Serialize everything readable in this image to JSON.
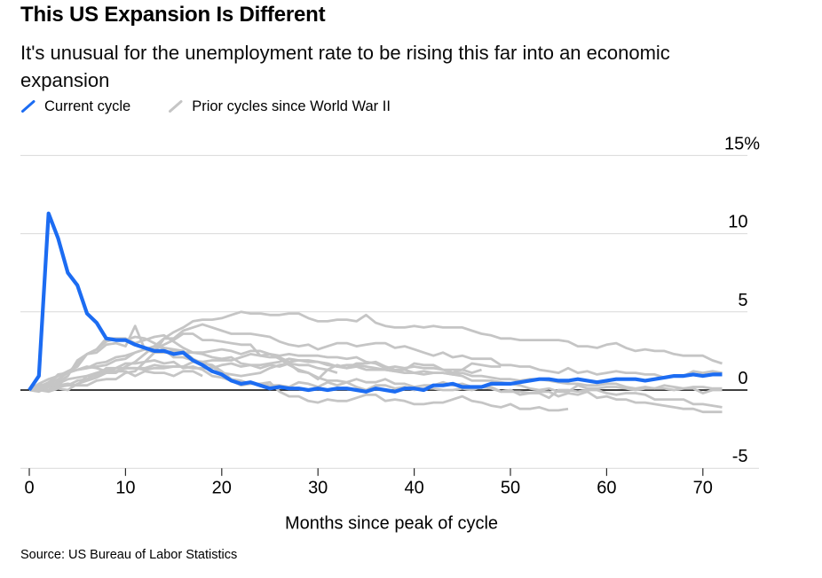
{
  "header": {
    "title": "This US Expansion Is Different",
    "subtitle": "It's unusual for the unemployment rate to be rising this far into an economic expansion"
  },
  "legend": [
    {
      "label": "Current cycle",
      "color": "#1c6cf2"
    },
    {
      "label": "Prior cycles since World War II",
      "color": "#c5c5c5"
    }
  ],
  "source": "Source: US Bureau of Labor Statistics",
  "colors": {
    "current_line": "#1c6cf2",
    "prior_line": "#c5c5c5",
    "gridline": "#d9d9d9",
    "zero_line": "#000000",
    "tick": "#2b2b2b",
    "text": "#000000",
    "background": "#ffffff"
  },
  "chart_data": {
    "type": "line",
    "xlabel": "Months since peak of cycle",
    "ylabel": "",
    "x_ticks": [
      0,
      10,
      20,
      30,
      40,
      50,
      60,
      70
    ],
    "y_ticks": [
      {
        "value": 15,
        "label": "15%"
      },
      {
        "value": 10,
        "label": "10"
      },
      {
        "value": 5,
        "label": "5"
      },
      {
        "value": 0,
        "label": "0"
      },
      {
        "value": -5,
        "label": "-5"
      }
    ],
    "xlim": [
      0,
      75
    ],
    "ylim": [
      -5,
      15
    ],
    "grid": "horizontal",
    "legend_position": "top-left",
    "x_unit": "months",
    "y_unit": "percentage points change in unemployment rate",
    "series": [
      {
        "name": "current-cycle",
        "role": "current",
        "color": "#1c6cf2",
        "width": 4.2,
        "values": [
          0,
          0.9,
          11.3,
          9.7,
          7.5,
          6.7,
          4.9,
          4.3,
          3.3,
          3.2,
          3.2,
          2.9,
          2.7,
          2.5,
          2.5,
          2.3,
          2.4,
          1.9,
          1.6,
          1.2,
          1.0,
          0.6,
          0.4,
          0.5,
          0.3,
          0.1,
          0.2,
          0.1,
          0.1,
          0,
          0.1,
          0,
          0.1,
          0.1,
          0,
          -0.1,
          0.1,
          0,
          -0.1,
          0.1,
          0.1,
          0,
          0.3,
          0.3,
          0.4,
          0.2,
          0.2,
          0.2,
          0.4,
          0.4,
          0.4,
          0.5,
          0.6,
          0.7,
          0.7,
          0.6,
          0.6,
          0.7,
          0.6,
          0.5,
          0.6,
          0.7,
          0.7,
          0.7,
          0.6,
          0.7,
          0.8,
          0.9,
          0.9,
          1.0,
          0.9,
          1.0,
          1.0
        ]
      },
      {
        "name": "prior-cycle-01",
        "role": "prior",
        "color": "#c5c5c5",
        "width": 2.8,
        "values": [
          0,
          0.2,
          0.5,
          0.9,
          1.2,
          1.5,
          2.3,
          2.4,
          2.9,
          3.0,
          2.8,
          4.1,
          2.6,
          2.8,
          2.7,
          2.6,
          2.5,
          2.0,
          1.7,
          1.6,
          1.2,
          0.7,
          0.6,
          0.4,
          0.4,
          0.5,
          -0.1,
          -0.4,
          -0.4,
          -0.7,
          -0.8,
          -0.6,
          -0.7,
          -0.7,
          -0.5,
          -0.3,
          -0.3,
          -0.7,
          -0.6,
          -0.7,
          -0.9,
          -0.9,
          -0.8,
          -0.8,
          -0.6,
          -0.4,
          -0.7,
          -0.8,
          -1.0,
          -1.1,
          -0.9,
          -1.2,
          -1.2,
          -1.1,
          -1.3,
          -1.3,
          -1.2
        ]
      },
      {
        "name": "prior-cycle-02",
        "role": "prior",
        "color": "#c5c5c5",
        "width": 2.8,
        "values": [
          0,
          0.1,
          0.3,
          0.5,
          0.9,
          1.9,
          2.3,
          2.6,
          3.1,
          3.3,
          3.3,
          3.0,
          3.2,
          3.4,
          3.5,
          3.1,
          2.7,
          2.4,
          2.3,
          2.1,
          2.0,
          2.1,
          1.7,
          1.6,
          1.4,
          1.6,
          1.5,
          1.7,
          1.6,
          1.6,
          1.4,
          1.3,
          1.6,
          1.4,
          1.7,
          1.7,
          1.8,
          1.5,
          1.3,
          1.3,
          1.7,
          1.6,
          1.6,
          1.3,
          1.1,
          1.3,
          1.7,
          1.6,
          1.5,
          1.5
        ]
      },
      {
        "name": "prior-cycle-03",
        "role": "prior",
        "color": "#c5c5c5",
        "width": 2.8,
        "values": [
          0,
          0.3,
          0.4,
          1.0,
          1.1,
          1.7,
          2.3,
          2.6,
          3.3,
          3.3,
          3.2,
          3.4,
          3.3,
          3.0,
          2.6,
          2.1,
          2.1,
          1.9,
          1.8,
          1.5,
          1.1,
          1.0,
          0.9,
          1.0,
          1.1,
          1.4,
          1.6,
          1.7,
          1.2,
          1.1,
          0.7,
          1.3,
          1.1
        ]
      },
      {
        "name": "prior-cycle-04",
        "role": "prior",
        "color": "#c5c5c5",
        "width": 2.8,
        "values": [
          0,
          -0.1,
          0.2,
          0.3,
          0.4,
          0.3,
          0.9,
          0.9,
          1.4,
          1.4,
          1.7,
          1.7,
          1.8,
          1.9,
          1.7,
          1.8,
          1.4,
          1.5,
          1.3,
          0.9,
          0.8,
          0.6,
          0.3,
          0.4,
          0.4,
          0.3,
          0.3,
          0.2,
          0.5,
          0.4,
          0.2,
          0.5,
          0.3,
          0.5,
          0.7,
          0.5,
          0.5,
          0.7,
          0.4,
          0.4,
          0.2,
          0.3,
          0.3,
          0.5,
          0.3,
          0.4,
          0.2,
          0.2,
          0.1,
          -0.1,
          0,
          -0.3,
          -0.2,
          -0.1,
          -0.1,
          -0.4,
          -0.2,
          -0.3,
          -0.1,
          -0.5,
          -0.4,
          -0.6,
          -0.6,
          -0.8,
          -0.8,
          -0.9,
          -1.0,
          -1.1,
          -1.2,
          -1.2,
          -1.4,
          -1.4,
          -1.4
        ]
      },
      {
        "name": "prior-cycle-05",
        "role": "prior",
        "color": "#c5c5c5",
        "width": 2.8,
        "values": [
          0,
          0.4,
          0.7,
          0.9,
          1.1,
          1.3,
          1.4,
          1.5,
          1.6,
          1.9,
          2.0,
          2.4,
          2.6,
          2.4,
          2.4,
          2.5,
          2.4,
          2.4,
          2.4,
          2.5,
          2.6,
          2.5,
          2.3,
          2.5,
          2.5,
          2.3,
          2.2,
          2.3,
          2.2,
          2.2,
          2.2,
          2.1,
          2.1,
          2.0,
          2.1,
          1.8,
          1.7,
          1.4,
          1.5,
          1.4,
          1.5,
          1.4,
          1.4,
          1.3,
          1.3,
          1.3,
          1.1,
          1.3
        ]
      },
      {
        "name": "prior-cycle-06",
        "role": "prior",
        "color": "#c5c5c5",
        "width": 2.8,
        "values": [
          0,
          0.1,
          0.3,
          0.4,
          0.3,
          0.3,
          0.3,
          0.6,
          0.7,
          0.7,
          1.1,
          1.2,
          1.8,
          2.4,
          3.3,
          3.3,
          3.8,
          4.0,
          4.2,
          4.0,
          3.8,
          3.6,
          3.6,
          3.6,
          3.5,
          3.4,
          3.1,
          2.9,
          2.8,
          2.9,
          2.6,
          2.8,
          3.0,
          3.0,
          2.8,
          2.9,
          3.0,
          3.0,
          2.7,
          2.8,
          2.6,
          2.4,
          2.2,
          2.4,
          2.1,
          2.2,
          2.0,
          2.0,
          2.0,
          1.6,
          1.6,
          1.5,
          1.5,
          1.3,
          1.2,
          1.1,
          1.4,
          1.1,
          1.2,
          1.0,
          1.1,
          1.2,
          1.1,
          1.1,
          1.0,
          1.0,
          0.8,
          0.9,
          0.9,
          1.2,
          1.1,
          1.2,
          1.1
        ]
      },
      {
        "name": "prior-cycle-07",
        "role": "prior",
        "color": "#c5c5c5",
        "width": 2.8,
        "values": [
          0,
          0,
          0,
          0.6,
          1.2,
          1.3,
          1.5,
          1.4,
          1.2,
          1.2,
          1.2,
          0.9,
          1.2,
          1.1,
          1.1,
          0.9,
          1.2,
          1.2,
          0.9
        ]
      },
      {
        "name": "prior-cycle-08",
        "role": "prior",
        "color": "#c5c5c5",
        "width": 2.8,
        "values": [
          0,
          0.2,
          0.4,
          0.7,
          1.1,
          1.3,
          1.4,
          1.7,
          1.8,
          2.1,
          2.2,
          2.4,
          2.6,
          2.6,
          2.9,
          3.2,
          3.6,
          3.6,
          3.2,
          3.2,
          3.1,
          3.0,
          2.9,
          2.9,
          2.2,
          2.3,
          2.0,
          1.6,
          1.3,
          1.1,
          0.8,
          0.6,
          0.6,
          0.5,
          0.2,
          0,
          0.3,
          0.3,
          0.1,
          0.2,
          0,
          0.1,
          0.1,
          0,
          0,
          0.1,
          0,
          0.2,
          0.2,
          -0.1,
          -0.1,
          -0.1,
          -0.2,
          -0.2,
          -0.5,
          0,
          0,
          -0.1,
          0,
          0,
          -0.2,
          -0.3,
          -0.2,
          -0.2,
          -0.3,
          -0.6,
          -0.6,
          -0.6,
          -0.6,
          -0.9,
          -0.9,
          -1.0,
          -1.1
        ]
      },
      {
        "name": "prior-cycle-09",
        "role": "prior",
        "color": "#c5c5c5",
        "width": 2.8,
        "values": [
          0,
          0.2,
          0.4,
          0.4,
          0.7,
          0.8,
          0.9,
          1.1,
          1.3,
          1.2,
          1.4,
          1.4,
          1.3,
          1.4,
          1.4,
          1.5,
          1.5,
          1.8,
          1.8,
          1.9,
          1.9,
          1.9,
          2.1,
          2.3,
          2.2,
          2.1,
          2.1,
          1.8,
          1.9,
          1.9,
          1.8,
          1.6,
          1.5,
          1.6,
          1.6,
          1.5,
          1.4,
          1.3,
          1.2,
          1.3,
          1.1,
          1.0,
          1.1,
          1.1,
          1.0,
          0.9,
          0.6,
          0.6,
          0.6,
          0.5,
          0.4,
          0.3,
          0.1,
          0,
          0.1,
          -0.1,
          -0.1,
          0.3,
          0.1,
          0.1,
          0.2,
          0.2,
          0.1,
          0,
          0.1,
          0.1,
          0.1,
          0,
          0.1,
          0.1,
          -0.2,
          0,
          0
        ]
      },
      {
        "name": "prior-cycle-10",
        "role": "prior",
        "color": "#c5c5c5",
        "width": 2.8,
        "values": [
          0,
          0.1,
          0,
          0.2,
          0.3,
          0.6,
          0.7,
          1.0,
          1.2,
          1.4,
          1.4,
          1.4,
          1.4,
          1.6,
          1.5,
          1.5,
          1.5,
          1.4,
          1.4,
          1.4,
          1.6,
          1.7,
          1.5,
          1.6,
          1.6,
          1.7,
          1.8,
          2.0,
          1.9,
          1.8,
          1.8,
          1.7,
          1.5,
          1.4,
          1.5,
          1.3,
          1.3,
          1.3,
          1.2,
          1.1,
          1.1,
          1.2,
          1.1,
          1.1,
          1.0,
          1.1,
          0.9,
          0.9,
          0.8,
          0.7,
          0.7,
          0.6,
          0.7,
          0.7,
          0.6,
          0.5,
          0.4,
          0.4,
          0.3,
          0.3,
          0.4,
          0.4,
          0.2,
          0.1,
          0.2,
          0.1,
          0.3,
          0.2,
          0.1,
          0.2,
          0.2,
          0.1,
          0.1
        ]
      },
      {
        "name": "prior-cycle-11",
        "role": "prior",
        "color": "#c5c5c5",
        "width": 2.8,
        "values": [
          0,
          0,
          -0.1,
          0.1,
          0,
          0.4,
          0.6,
          0.8,
          1.1,
          1.1,
          1.5,
          1.8,
          2.3,
          2.8,
          3.3,
          3.7,
          4.0,
          4.4,
          4.5,
          4.5,
          4.6,
          4.8,
          5.0,
          4.9,
          4.9,
          4.8,
          4.8,
          4.9,
          4.9,
          4.6,
          4.4,
          4.4,
          4.5,
          4.5,
          4.4,
          4.8,
          4.3,
          4.1,
          4.0,
          4.0,
          4.1,
          4.0,
          4.1,
          4.0,
          4.0,
          4.0,
          3.8,
          3.6,
          3.5,
          3.3,
          3.3,
          3.2,
          3.2,
          3.2,
          3.2,
          3.2,
          3.1,
          2.8,
          2.8,
          2.7,
          2.9,
          3.0,
          2.7,
          2.5,
          2.6,
          2.5,
          2.5,
          2.3,
          2.2,
          2.2,
          2.2,
          1.9,
          1.7
        ]
      }
    ]
  }
}
